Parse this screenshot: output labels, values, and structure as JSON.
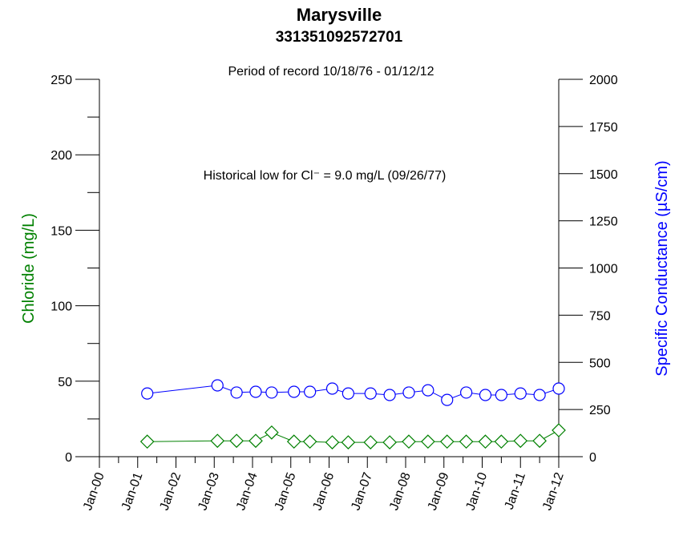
{
  "chart_data": {
    "type": "line",
    "title": "Marysville",
    "subtitle": "331351092572701",
    "period": "Period of record 10/18/76 - 01/12/12",
    "annotation": "Historical low for Cl⁻ = 9.0 mg/L (09/26/77)",
    "ylabel": "Chloride (mg/L)",
    "ylabel_color": "#008000",
    "y2label": "Specific Conductance (µS/cm)",
    "y2label_color": "#0000ff",
    "x": [
      "2001-04",
      "2003-02",
      "2003-08",
      "2004-02",
      "2004-07",
      "2005-02",
      "2005-07",
      "2006-02",
      "2006-07",
      "2007-02",
      "2007-08",
      "2008-02",
      "2008-08",
      "2009-02",
      "2009-08",
      "2010-02",
      "2010-07",
      "2011-01",
      "2011-07",
      "2012-01"
    ],
    "series": [
      {
        "color": "#008000",
        "marker": "diamond",
        "axis": "y",
        "values": [
          10,
          10.5,
          10.5,
          10.5,
          16,
          10,
          10,
          9.5,
          9.5,
          9.5,
          9.5,
          10,
          10,
          10,
          10,
          10,
          10,
          10.5,
          10.5,
          17.5
        ]
      },
      {
        "color": "#0000ff",
        "marker": "circle",
        "axis": "y2",
        "values": [
          335,
          378,
          340,
          344,
          340,
          344,
          344,
          361,
          335,
          335,
          327,
          340,
          352,
          301,
          340,
          327,
          327,
          335,
          327,
          361
        ]
      }
    ],
    "xlim": [
      "2000-01",
      "2012-01"
    ],
    "xticks": [
      {
        "value": "2000-01",
        "label": "Jan-00"
      },
      {
        "value": "2001-01",
        "label": "Jan-01"
      },
      {
        "value": "2002-01",
        "label": "Jan-02"
      },
      {
        "value": "2003-01",
        "label": "Jan-03"
      },
      {
        "value": "2004-01",
        "label": "Jan-04"
      },
      {
        "value": "2005-01",
        "label": "Jan-05"
      },
      {
        "value": "2006-01",
        "label": "Jan-06"
      },
      {
        "value": "2007-01",
        "label": "Jan-07"
      },
      {
        "value": "2008-01",
        "label": "Jan-08"
      },
      {
        "value": "2009-01",
        "label": "Jan-09"
      },
      {
        "value": "2010-01",
        "label": "Jan-10"
      },
      {
        "value": "2011-01",
        "label": "Jan-11"
      },
      {
        "value": "2012-01",
        "label": "Jan-12"
      }
    ],
    "xminor_ticks": [
      "2000-07",
      "2001-07",
      "2002-07",
      "2003-07",
      "2004-07",
      "2005-07",
      "2006-07",
      "2007-07",
      "2008-07",
      "2009-07",
      "2010-07",
      "2011-07"
    ],
    "ylim": [
      0,
      250
    ],
    "yticks": [
      0,
      50,
      100,
      150,
      200,
      250
    ],
    "yminor_ticks": [
      25,
      75,
      125,
      175,
      225
    ],
    "y2lim": [
      0,
      2000
    ],
    "y2ticks": [
      0,
      250,
      500,
      750,
      1000,
      1250,
      1500,
      1750,
      2000
    ]
  }
}
